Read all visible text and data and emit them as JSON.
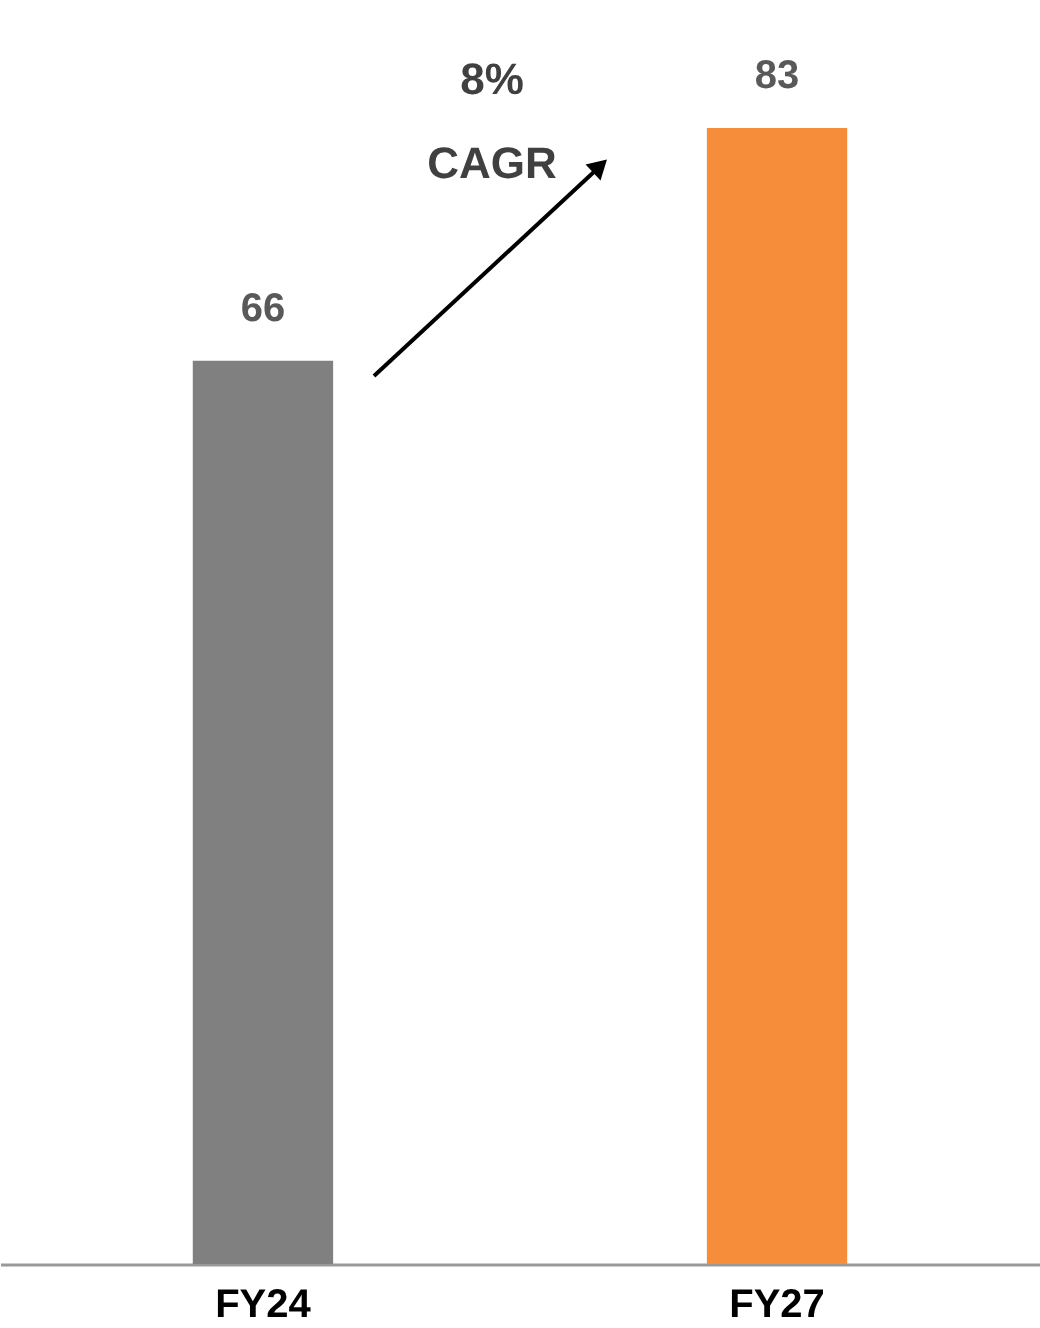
{
  "chart_data": {
    "type": "bar",
    "categories": [
      "FY24",
      "FY27"
    ],
    "values": [
      66,
      83
    ],
    "colors": [
      "#808080",
      "#f58d3b"
    ],
    "data_labels": true,
    "annotations": [
      "8% CAGR"
    ]
  }
}
